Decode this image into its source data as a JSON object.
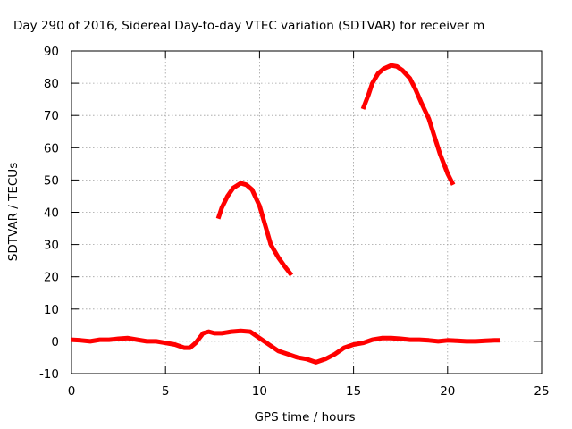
{
  "chart_data": {
    "type": "line",
    "title": "Day 290 of 2016, Sidereal Day-to-day VTEC variation (SDTVAR) for receiver m",
    "xlabel": "GPS time / hours",
    "ylabel": "SDTVAR / TECUs",
    "xlim": [
      0,
      25
    ],
    "ylim": [
      -10,
      90
    ],
    "xticks": [
      "0",
      "5",
      "10",
      "15",
      "20",
      "25"
    ],
    "yticks": [
      "-10",
      "0",
      "10",
      "20",
      "30",
      "40",
      "50",
      "60",
      "70",
      "80",
      "90"
    ],
    "xtick_values": [
      0,
      5,
      10,
      15,
      20,
      25
    ],
    "ytick_values": [
      -10,
      0,
      10,
      20,
      30,
      40,
      50,
      60,
      70,
      80,
      90
    ],
    "grid": true,
    "legend": false,
    "color": "#ff0000",
    "series": [
      {
        "x": [
          0,
          0.5,
          1,
          1.5,
          2,
          2.5,
          3,
          3.5,
          4,
          4.5,
          5,
          5.5,
          6,
          6.3,
          6.6,
          7,
          7.3,
          7.6,
          8,
          8.5,
          9,
          9.5,
          10,
          10.5,
          11,
          11.5,
          12,
          12.5,
          13,
          13.5,
          14,
          14.5,
          15,
          15.5,
          16,
          16.5,
          17,
          17.5,
          18,
          18.5,
          19,
          19.5,
          20,
          20.5,
          21,
          21.5,
          22,
          22.5,
          22.8
        ],
        "y": [
          0.5,
          0.3,
          0,
          0.5,
          0.5,
          0.8,
          1,
          0.5,
          0,
          0,
          -0.5,
          -1,
          -2,
          -2,
          -0.5,
          2.5,
          3,
          2.5,
          2.5,
          3,
          3.2,
          3,
          1,
          -1,
          -3,
          -4,
          -5,
          -5.5,
          -6.5,
          -5.5,
          -4,
          -2,
          -1,
          -0.5,
          0.5,
          1,
          1,
          0.8,
          0.5,
          0.5,
          0.3,
          0,
          0.3,
          0.2,
          0,
          0,
          0.2,
          0.3,
          0.3
        ]
      },
      {
        "x": [
          7.8,
          8,
          8.3,
          8.6,
          9,
          9.3,
          9.6,
          10,
          10.3,
          10.6,
          11,
          11.3,
          11.7
        ],
        "y": [
          38,
          41.5,
          45,
          47.5,
          49,
          48.5,
          47,
          42,
          36,
          30,
          26,
          23.5,
          20.5
        ]
      },
      {
        "x": [
          15.5,
          15.8,
          16,
          16.3,
          16.6,
          17,
          17.3,
          17.6,
          18,
          18.3,
          18.6,
          19,
          19.3,
          19.6,
          20,
          20.3
        ],
        "y": [
          72,
          76.5,
          80,
          83,
          84.5,
          85.5,
          85.2,
          84,
          81.5,
          78,
          74,
          69,
          63.5,
          58,
          52,
          48.5
        ]
      }
    ]
  }
}
